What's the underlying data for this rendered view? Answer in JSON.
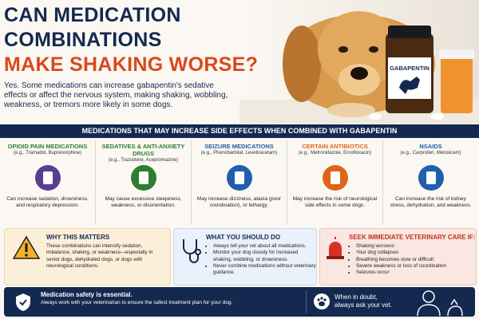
{
  "header": {
    "title_lines": [
      "CAN MEDICATION",
      "COMBINATIONS",
      "MAKE SHAKING WORSE?"
    ],
    "intro": "Yes. Some medications can increase gabapentin's sedative effects or affect the nervous system, making shaking, wobbling, weakness, or tremors more likely in some dogs.",
    "bottle_label": "GABAPENTIN"
  },
  "banner": "MEDICATIONS THAT MAY INCREASE SIDE EFFECTS WHEN COMBINED WITH GABAPENTIN",
  "columns": [
    {
      "title": "OPIOID PAIN MEDICATIONS",
      "examples": "(e.g., Tramadol, Buprenorphine)",
      "text": "Can increase sedation, drowsiness, and respiratory depression."
    },
    {
      "title": "SEDATIVES & ANTI-ANXIETY DRUGS",
      "examples": "(e.g., Trazodone, Acepromazine)",
      "text": "May cause excessive sleepiness, weakness, or disorientation."
    },
    {
      "title": "SEIZURE MEDICATIONS",
      "examples": "(e.g., Phenobarbital, Levetiracetam)",
      "text": "May increase dizziness, ataxia (poor coordination), or lethargy."
    },
    {
      "title": "CERTAIN ANTIBIOTICS",
      "examples": "(e.g., Metronidazole, Enrofloxacin)",
      "text": "May increase the risk of neurological side effects in some dogs."
    },
    {
      "title": "NSAIDS",
      "examples": "(e.g., Carprofen, Meloxicam)",
      "text": "Can increase the risk of kidney stress, dehydration, and weakness."
    }
  ],
  "why": {
    "title": "WHY THIS MATTERS",
    "text": "These combinations can intensify sedation, imbalance, shaking, or weakness—especially in senior dogs, dehydrated dogs, or dogs with neurological conditions."
  },
  "todo": {
    "title": "WHAT YOU SHOULD DO",
    "items": [
      "Always tell your vet about all medications.",
      "Monitor your dog closely for increased shaking, wobbling, or drowsiness.",
      "Never combine medications without veterinary guidance."
    ]
  },
  "urgent": {
    "title": "SEEK IMMEDIATE VETERINARY CARE IF:",
    "items": [
      "Shaking worsens",
      "Your dog collapses",
      "Breathing becomes slow or difficult",
      "Severe weakness or loss of coordination",
      "Seizures occur"
    ]
  },
  "footer": {
    "title": "Medication safety is essential.",
    "text": "Always work with your veterinarian to ensure the safest treatment plan for your dog.",
    "advice": "When in doubt, always ask your vet."
  }
}
